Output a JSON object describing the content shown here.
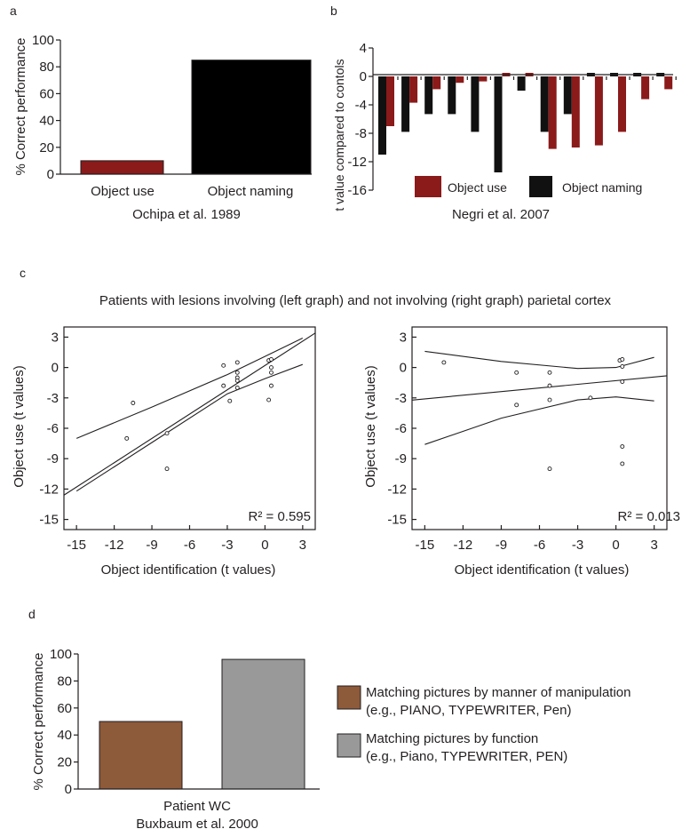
{
  "panels": {
    "a": "a",
    "b": "b",
    "c": "c",
    "d": "d"
  },
  "colors": {
    "red": "#8b1a1a",
    "black": "#111111",
    "brown": "#8d5a3a",
    "gray": "#999999",
    "axis": "#231f20"
  },
  "chart_data": [
    {
      "id": "a",
      "type": "bar",
      "title": "",
      "ylabel": "% Correct performance",
      "xlabel": "Ochipa et al. 1989",
      "categories": [
        "Object use",
        "Object naming"
      ],
      "values": [
        10,
        85
      ],
      "colors": [
        "#8b1a1a",
        "#000000"
      ],
      "ylim": [
        0,
        100
      ],
      "yticks": [
        0,
        20,
        40,
        60,
        80,
        100
      ],
      "grid": false
    },
    {
      "id": "b",
      "type": "bar",
      "title": "",
      "ylabel": "t value compared to contols",
      "xlabel": "Negri et al. 2007",
      "series": [
        {
          "name": "Object use",
          "color": "#8b1a1a",
          "values": [
            -7,
            -3.7,
            -1.8,
            -0.9,
            -0.7,
            0.5,
            0.5,
            -10.2,
            -10,
            -9.7,
            -7.8,
            -3.2,
            -1.8
          ]
        },
        {
          "name": "Object naming",
          "color": "#111111",
          "values": [
            -11,
            -7.8,
            -5.3,
            -5.3,
            -7.8,
            -13.5,
            -2,
            -7.8,
            -5.3,
            0.5,
            0.5,
            0.5,
            0.5
          ]
        }
      ],
      "ylim": [
        -16,
        4
      ],
      "yticks": [
        4,
        0,
        -4,
        -8,
        -12,
        -16
      ],
      "legend": "bottom-center",
      "grid": false
    },
    {
      "id": "c",
      "title": "Patients with lesions involving (left graph) and not involving (right graph) parietal cortex",
      "plots": [
        {
          "type": "scatter",
          "xlabel": "Object identification (t values)",
          "ylabel": "Object use (t values)",
          "xlim": [
            -16,
            4
          ],
          "ylim": [
            -16,
            4
          ],
          "xticks": [
            -15,
            -12,
            -9,
            -6,
            -3,
            0,
            3
          ],
          "yticks": [
            3,
            0,
            -3,
            -6,
            -9,
            -12,
            -15
          ],
          "annotation": "R² = 0.595",
          "points": [
            [
              -10.5,
              -3.5
            ],
            [
              -11,
              -7
            ],
            [
              -7.8,
              -6.5
            ],
            [
              -7.8,
              -10
            ],
            [
              -3.3,
              0.2
            ],
            [
              -3.3,
              -1.8
            ],
            [
              -2.8,
              -3.3
            ],
            [
              -2.2,
              0.5
            ],
            [
              -2.2,
              -0.5
            ],
            [
              -2.2,
              -1
            ],
            [
              -2.2,
              -1.3
            ],
            [
              -2.2,
              -2
            ],
            [
              0.3,
              0.7
            ],
            [
              0.5,
              0.8
            ],
            [
              0.5,
              0
            ],
            [
              0.5,
              -0.5
            ],
            [
              0.5,
              -1.8
            ],
            [
              0.3,
              -3.2
            ]
          ],
          "regression": {
            "slope": 0.8,
            "intercept": 0.2
          },
          "ci_upper": [
            [
              -15,
              -7
            ],
            [
              -9,
              -3.9
            ],
            [
              -3,
              -0.7
            ],
            [
              0,
              1.1
            ],
            [
              3,
              2.9
            ]
          ],
          "ci_lower": [
            [
              -15,
              -12.2
            ],
            [
              -9,
              -7.4
            ],
            [
              -3,
              -2.6
            ],
            [
              0,
              -1.1
            ],
            [
              3,
              0.3
            ]
          ]
        },
        {
          "type": "scatter",
          "xlabel": "Object identification (t values)",
          "ylabel": "Object use (t values)",
          "xlim": [
            -16,
            4
          ],
          "ylim": [
            -16,
            4
          ],
          "xticks": [
            -15,
            -12,
            -9,
            -6,
            -3,
            0,
            3
          ],
          "yticks": [
            3,
            0,
            -3,
            -6,
            -9,
            -12,
            -15
          ],
          "annotation": "R² = 0.013",
          "points": [
            [
              -13.5,
              0.5
            ],
            [
              -7.8,
              -0.5
            ],
            [
              -7.8,
              -3.7
            ],
            [
              -5.2,
              -0.5
            ],
            [
              -5.2,
              -1.8
            ],
            [
              -5.2,
              -3.2
            ],
            [
              -5.2,
              -10
            ],
            [
              -2,
              -3
            ],
            [
              0.3,
              0.7
            ],
            [
              0.5,
              0.8
            ],
            [
              0.5,
              0.1
            ],
            [
              0.5,
              -1.4
            ],
            [
              0.5,
              -7.8
            ],
            [
              0.5,
              -9.5
            ]
          ],
          "regression": {
            "slope": 0.12,
            "intercept": -1.3
          },
          "ci_upper": [
            [
              -15,
              1.6
            ],
            [
              -9,
              0.6
            ],
            [
              -3,
              -0.1
            ],
            [
              0,
              0
            ],
            [
              3,
              1
            ]
          ],
          "ci_lower": [
            [
              -15,
              -7.6
            ],
            [
              -9,
              -5
            ],
            [
              -3,
              -3.2
            ],
            [
              0,
              -2.9
            ],
            [
              3,
              -3.3
            ]
          ]
        }
      ]
    },
    {
      "id": "d",
      "type": "bar",
      "title": "",
      "ylabel": "% Correct performance",
      "xlabel_lines": [
        "Patient WC",
        "Buxbaum et al. 2000"
      ],
      "categories": [
        "",
        ""
      ],
      "series": [
        {
          "name": "Matching pictures by manner of manipulation",
          "sub": "(e.g., PIANO, TYPEWRITER, Pen)",
          "color": "#8d5a3a",
          "value": 50
        },
        {
          "name": "Matching pictures by function",
          "sub": "(e.g., Piano, TYPEWRITER, PEN)",
          "color": "#999999",
          "value": 96
        }
      ],
      "ylim": [
        0,
        100
      ],
      "yticks": [
        0,
        20,
        40,
        60,
        80,
        100
      ],
      "legend": "right",
      "grid": false
    }
  ]
}
